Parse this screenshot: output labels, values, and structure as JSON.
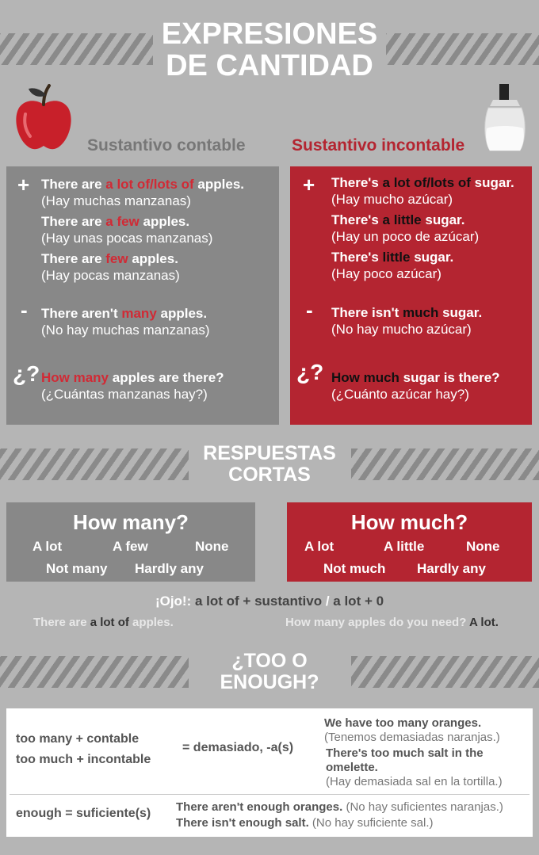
{
  "title": {
    "line1": "EXPRESIONES",
    "line2": "DE CANTIDAD"
  },
  "countable": {
    "title": "Sustantivo contable",
    "plus": "+",
    "minus": "-",
    "question": "¿?",
    "lines": [
      {
        "pre": "There are ",
        "hl": "a lot of/lots of",
        "post": " apples.",
        "es": "(Hay muchas manzanas)"
      },
      {
        "pre": "There are ",
        "hl": "a few",
        "post": " apples.",
        "es": "(Hay unas pocas manzanas)"
      },
      {
        "pre": "There are ",
        "hl": "few",
        "post": " apples.",
        "es": "(Hay pocas manzanas)"
      },
      {
        "pre": "There aren't ",
        "hl": "many",
        "post": " apples.",
        "es": "(No hay muchas manzanas)"
      },
      {
        "pre": "",
        "hl": "How many",
        "post": " apples are there?",
        "es": "(¿Cuántas manzanas hay?)"
      }
    ]
  },
  "uncountable": {
    "title": "Sustantivo incontable",
    "plus": "+",
    "minus": "-",
    "question": "¿?",
    "lines": [
      {
        "pre": "There's ",
        "hl": "a lot of/lots of",
        "post": " sugar.",
        "es": "(Hay mucho azúcar)"
      },
      {
        "pre": "There's ",
        "hl": "a little",
        "post": " sugar.",
        "es": "(Hay un poco de azúcar)"
      },
      {
        "pre": "There's ",
        "hl": "little",
        "post": " sugar.",
        "es": "(Hay poco azúcar)"
      },
      {
        "pre": "There isn't ",
        "hl": "much",
        "post": " sugar.",
        "es": "(No hay mucho azúcar)"
      },
      {
        "pre": "",
        "hl": "How much",
        "post": " sugar is there?",
        "es": "(¿Cuánto azúcar hay?)"
      }
    ]
  },
  "short_answers": {
    "heading1": "RESPUESTAS",
    "heading2": "CORTAS",
    "many": {
      "title": "How many?",
      "opts": [
        "A lot",
        "A few",
        "None",
        "Not many",
        "Hardly any"
      ]
    },
    "much": {
      "title": "How much?",
      "opts": [
        "A lot",
        "A little",
        "None",
        "Not much",
        "Hardly any"
      ]
    }
  },
  "ojo": {
    "label": "¡Ojo!:",
    "rule1": " a lot of + sustantivo",
    "slash": " / ",
    "rule2": "a lot + 0",
    "ex1_pre": "There are ",
    "ex1_hl": "a lot of",
    "ex1_post": " apples.",
    "ex2_pre": "How many apples do you need? ",
    "ex2_hl": "A lot."
  },
  "too_enough": {
    "heading1": "¿TOO O",
    "heading2": "ENOUGH?",
    "rule_many": "too many + contable",
    "rule_much": "too much + incontable",
    "meaning": "= demasiado, -a(s)",
    "ex1_en": "We have too many oranges.",
    "ex1_es": "(Tenemos demasiadas naranjas.)",
    "ex2_en_1": "There's too much salt in the",
    "ex2_en_2": "omelette.",
    "ex2_es": "(Hay demasiada sal en la tortilla.)",
    "enough_rule": "enough = suficiente(s)",
    "enough_ex1_en": "There aren't enough oranges.",
    "enough_ex1_es": " (No hay suficientes naranjas.)",
    "enough_ex2_en": "There isn't enough salt.",
    "enough_ex2_es": " (No hay suficiente sal.)"
  },
  "colors": {
    "red": "#b42531",
    "grey_panel": "#888888",
    "background": "#b5b5b5",
    "highlight_red": "#d12a35"
  },
  "icons": [
    "apple-icon",
    "sugar-dispenser-icon"
  ]
}
